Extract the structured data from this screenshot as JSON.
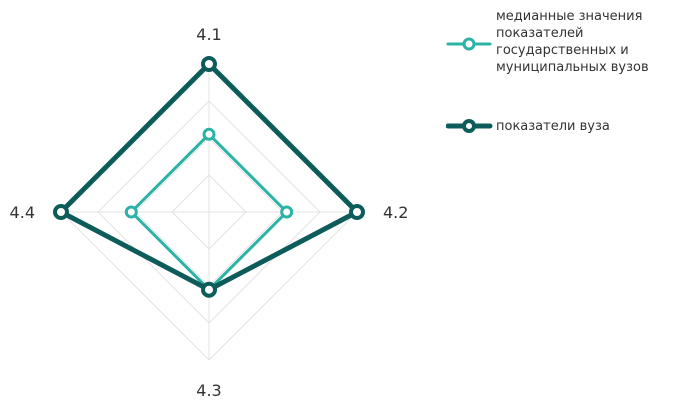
{
  "chart_data": {
    "type": "radar",
    "axes": [
      "4.1",
      "4.2",
      "4.3",
      "4.4"
    ],
    "rlim": [
      0,
      4
    ],
    "grid_levels": 4,
    "series": [
      {
        "name": "медианные значения показателей государственных и муниципальных вузов",
        "values": [
          2.1,
          2.1,
          2.1,
          2.1
        ],
        "color": "#2ab3a6",
        "line_width": 3
      },
      {
        "name": "показатели вуза",
        "values": [
          4.0,
          4.0,
          2.1,
          4.0
        ],
        "color": "#0d5c5a",
        "line_width": 5
      }
    ],
    "legend_position": "top-right",
    "grid": true
  }
}
